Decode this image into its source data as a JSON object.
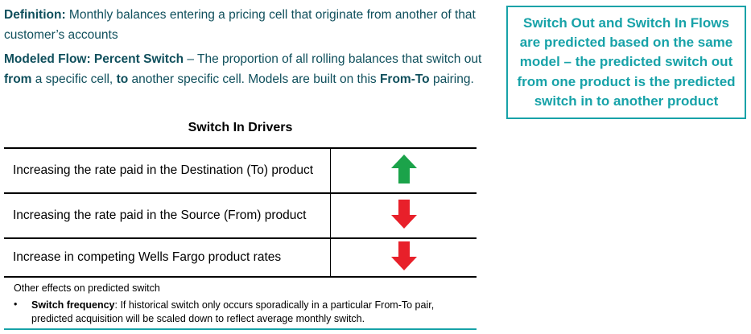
{
  "definition": {
    "label": "Definition:",
    "text": " Monthly balances entering a pricing cell that originate from another of that customer’s accounts"
  },
  "modeled_flow": {
    "label": "Modeled Flow: Percent Switch",
    "text_1": " – The proportion of all rolling balances that switch out ",
    "from_word": "from",
    "text_2": " a specific cell, ",
    "to_word": "to",
    "text_3": " another specific cell. Models are built on this ",
    "pairing_word": "From-To",
    "text_4": " pairing."
  },
  "callout": {
    "text": "Switch Out and Switch In Flows are predicted based on the same model – the predicted switch out from one product is the predicted switch in to another product"
  },
  "drivers": {
    "title": "Switch In Drivers",
    "rows": [
      {
        "label": "Increasing the rate paid in the Destination (To) product",
        "direction": "up",
        "color": "#1ba34a"
      },
      {
        "label": "Increasing the rate paid in the Source (From) product",
        "direction": "down",
        "color": "#e8202a"
      },
      {
        "label": "Increase in competing Wells Fargo product rates",
        "direction": "down",
        "color": "#e8202a"
      }
    ]
  },
  "notes": {
    "heading": "Other effects on predicted switch",
    "bullet": "•",
    "bullet_label": "Switch frequency",
    "bullet_text": ": If historical switch only occurs sporadically in a particular From-To pair, predicted acquisition will be scaled down to reflect average monthly switch."
  },
  "colors": {
    "text_dark": "#0f4f5c",
    "accent": "#17a2a8",
    "arrow_up": "#1ba34a",
    "arrow_down": "#e8202a"
  }
}
